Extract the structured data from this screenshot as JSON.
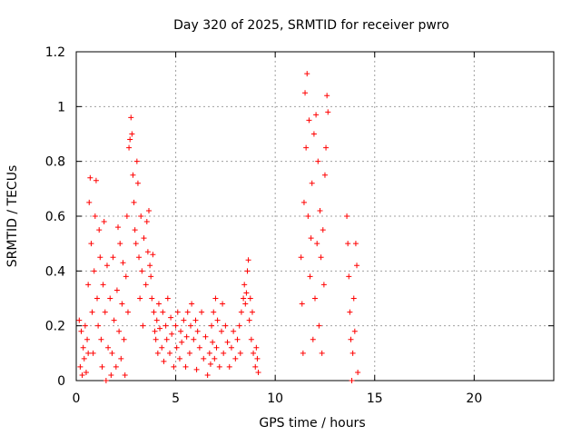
{
  "chart_data": {
    "type": "scatter",
    "title": "Day 320 of 2025, SRMTID for receiver pwro",
    "xlabel": "GPS time / hours",
    "ylabel": "SRMTID / TECUs",
    "xlim": [
      0,
      24
    ],
    "ylim": [
      0,
      1.2
    ],
    "x_ticks": [
      0,
      5,
      10,
      15,
      20
    ],
    "y_ticks": [
      0,
      0.2,
      0.4,
      0.6,
      0.8,
      1,
      1.2
    ],
    "x_tick_labels": [
      "0",
      "5",
      "10",
      "15",
      "20"
    ],
    "y_tick_labels": [
      "0",
      "0.2",
      "0.4",
      "0.6",
      "0.8",
      "1",
      "1.2"
    ],
    "grid": true,
    "marker": "plus",
    "color": "#ff0000",
    "series": [
      {
        "points": [
          [
            0.15,
            0.22
          ],
          [
            0.2,
            0.05
          ],
          [
            0.25,
            0.18
          ],
          [
            0.3,
            0.02
          ],
          [
            0.35,
            0.12
          ],
          [
            0.4,
            0.08
          ],
          [
            0.45,
            0.2
          ],
          [
            0.5,
            0.03
          ],
          [
            0.55,
            0.15
          ],
          [
            0.6,
            0.1
          ],
          [
            0.6,
            0.35
          ],
          [
            0.65,
            0.65
          ],
          [
            0.7,
            0.74
          ],
          [
            0.75,
            0.5
          ],
          [
            0.8,
            0.25
          ],
          [
            0.85,
            0.1
          ],
          [
            0.9,
            0.4
          ],
          [
            0.95,
            0.6
          ],
          [
            1.0,
            0.73
          ],
          [
            1.05,
            0.3
          ],
          [
            1.1,
            0.2
          ],
          [
            1.15,
            0.55
          ],
          [
            1.2,
            0.45
          ],
          [
            1.25,
            0.15
          ],
          [
            1.3,
            0.05
          ],
          [
            1.35,
            0.35
          ],
          [
            1.4,
            0.58
          ],
          [
            1.45,
            0.25
          ],
          [
            1.5,
            0.0
          ],
          [
            1.55,
            0.42
          ],
          [
            1.6,
            0.12
          ],
          [
            1.7,
            0.3
          ],
          [
            1.75,
            0.02
          ],
          [
            1.8,
            0.1
          ],
          [
            1.85,
            0.45
          ],
          [
            1.9,
            0.22
          ],
          [
            2.0,
            0.05
          ],
          [
            2.05,
            0.33
          ],
          [
            2.1,
            0.56
          ],
          [
            2.15,
            0.18
          ],
          [
            2.2,
            0.5
          ],
          [
            2.25,
            0.08
          ],
          [
            2.3,
            0.28
          ],
          [
            2.35,
            0.43
          ],
          [
            2.4,
            0.15
          ],
          [
            2.45,
            0.02
          ],
          [
            2.5,
            0.38
          ],
          [
            2.55,
            0.6
          ],
          [
            2.6,
            0.25
          ],
          [
            2.65,
            0.85
          ],
          [
            2.7,
            0.88
          ],
          [
            2.75,
            0.96
          ],
          [
            2.8,
            0.9
          ],
          [
            2.85,
            0.75
          ],
          [
            2.9,
            0.65
          ],
          [
            2.95,
            0.55
          ],
          [
            3.0,
            0.5
          ],
          [
            3.05,
            0.8
          ],
          [
            3.1,
            0.72
          ],
          [
            3.15,
            0.45
          ],
          [
            3.2,
            0.3
          ],
          [
            3.25,
            0.6
          ],
          [
            3.3,
            0.4
          ],
          [
            3.35,
            0.2
          ],
          [
            3.4,
            0.52
          ],
          [
            3.5,
            0.35
          ],
          [
            3.55,
            0.58
          ],
          [
            3.6,
            0.47
          ],
          [
            3.65,
            0.62
          ],
          [
            3.7,
            0.42
          ],
          [
            3.75,
            0.38
          ],
          [
            3.8,
            0.3
          ],
          [
            3.85,
            0.46
          ],
          [
            3.9,
            0.25
          ],
          [
            3.95,
            0.18
          ],
          [
            4.0,
            0.15
          ],
          [
            4.05,
            0.22
          ],
          [
            4.1,
            0.1
          ],
          [
            4.15,
            0.28
          ],
          [
            4.2,
            0.19
          ],
          [
            4.3,
            0.12
          ],
          [
            4.35,
            0.25
          ],
          [
            4.4,
            0.07
          ],
          [
            4.5,
            0.2
          ],
          [
            4.55,
            0.15
          ],
          [
            4.6,
            0.3
          ],
          [
            4.7,
            0.1
          ],
          [
            4.75,
            0.23
          ],
          [
            4.8,
            0.17
          ],
          [
            4.9,
            0.05
          ],
          [
            5.0,
            0.2
          ],
          [
            5.05,
            0.12
          ],
          [
            5.1,
            0.25
          ],
          [
            5.2,
            0.08
          ],
          [
            5.25,
            0.18
          ],
          [
            5.3,
            0.14
          ],
          [
            5.4,
            0.22
          ],
          [
            5.5,
            0.05
          ],
          [
            5.55,
            0.16
          ],
          [
            5.6,
            0.25
          ],
          [
            5.7,
            0.1
          ],
          [
            5.75,
            0.2
          ],
          [
            5.8,
            0.28
          ],
          [
            5.9,
            0.15
          ],
          [
            6.0,
            0.22
          ],
          [
            6.05,
            0.04
          ],
          [
            6.1,
            0.18
          ],
          [
            6.2,
            0.12
          ],
          [
            6.3,
            0.25
          ],
          [
            6.4,
            0.08
          ],
          [
            6.5,
            0.16
          ],
          [
            6.6,
            0.02
          ],
          [
            6.7,
            0.1
          ],
          [
            6.75,
            0.06
          ],
          [
            6.8,
            0.2
          ],
          [
            6.85,
            0.14
          ],
          [
            6.9,
            0.25
          ],
          [
            6.95,
            0.08
          ],
          [
            7.0,
            0.3
          ],
          [
            7.05,
            0.12
          ],
          [
            7.1,
            0.22
          ],
          [
            7.2,
            0.05
          ],
          [
            7.3,
            0.18
          ],
          [
            7.35,
            0.28
          ],
          [
            7.4,
            0.1
          ],
          [
            7.5,
            0.2
          ],
          [
            7.6,
            0.14
          ],
          [
            7.7,
            0.05
          ],
          [
            7.8,
            0.12
          ],
          [
            7.9,
            0.18
          ],
          [
            8.0,
            0.08
          ],
          [
            8.1,
            0.15
          ],
          [
            8.2,
            0.2
          ],
          [
            8.25,
            0.1
          ],
          [
            8.3,
            0.25
          ],
          [
            8.4,
            0.3
          ],
          [
            8.45,
            0.35
          ],
          [
            8.5,
            0.28
          ],
          [
            8.55,
            0.32
          ],
          [
            8.6,
            0.4
          ],
          [
            8.65,
            0.44
          ],
          [
            8.7,
            0.22
          ],
          [
            8.75,
            0.3
          ],
          [
            8.8,
            0.15
          ],
          [
            8.85,
            0.25
          ],
          [
            8.9,
            0.1
          ],
          [
            9.0,
            0.05
          ],
          [
            9.05,
            0.12
          ],
          [
            9.1,
            0.08
          ],
          [
            9.15,
            0.03
          ],
          [
            11.3,
            0.45
          ],
          [
            11.35,
            0.28
          ],
          [
            11.4,
            0.1
          ],
          [
            11.45,
            0.65
          ],
          [
            11.5,
            1.05
          ],
          [
            11.55,
            0.85
          ],
          [
            11.6,
            1.12
          ],
          [
            11.65,
            0.6
          ],
          [
            11.7,
            0.95
          ],
          [
            11.75,
            0.38
          ],
          [
            11.8,
            0.52
          ],
          [
            11.85,
            0.72
          ],
          [
            11.9,
            0.15
          ],
          [
            11.95,
            0.9
          ],
          [
            12.0,
            0.3
          ],
          [
            12.05,
            0.97
          ],
          [
            12.1,
            0.5
          ],
          [
            12.15,
            0.8
          ],
          [
            12.2,
            0.2
          ],
          [
            12.25,
            0.62
          ],
          [
            12.3,
            0.45
          ],
          [
            12.35,
            0.1
          ],
          [
            12.4,
            0.55
          ],
          [
            12.45,
            0.35
          ],
          [
            12.5,
            0.75
          ],
          [
            12.55,
            0.85
          ],
          [
            12.6,
            1.04
          ],
          [
            12.65,
            0.98
          ],
          [
            13.6,
            0.6
          ],
          [
            13.65,
            0.5
          ],
          [
            13.7,
            0.38
          ],
          [
            13.75,
            0.25
          ],
          [
            13.8,
            0.15
          ],
          [
            13.85,
            0.0
          ],
          [
            13.9,
            0.1
          ],
          [
            13.95,
            0.3
          ],
          [
            14.0,
            0.18
          ],
          [
            14.05,
            0.5
          ],
          [
            14.1,
            0.42
          ],
          [
            14.15,
            0.03
          ]
        ]
      }
    ]
  }
}
